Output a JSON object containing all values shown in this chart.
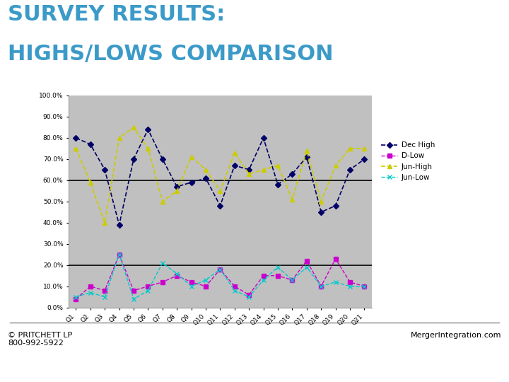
{
  "title_line1": "SURVEY RESULTS:",
  "title_line2": "HIGHS/LOWS COMPARISON",
  "title_color": "#3B9AC8",
  "title_fontsize": 22,
  "categories": [
    "Q1",
    "Q2",
    "Q3",
    "Q4",
    "Q5",
    "Q6",
    "Q7",
    "Q8",
    "Q9",
    "Q10",
    "Q11",
    "Q12",
    "Q13",
    "Q14",
    "Q15",
    "Q16",
    "Q17",
    "Q18",
    "Q19",
    "Q20",
    "Q21"
  ],
  "dec_high": [
    80,
    77,
    65,
    39,
    70,
    84,
    70,
    57,
    59,
    61,
    48,
    67,
    65,
    80,
    58,
    63,
    71,
    45,
    48,
    65,
    70
  ],
  "d_low": [
    4,
    10,
    8,
    25,
    8,
    10,
    12,
    15,
    12,
    10,
    18,
    10,
    6,
    15,
    15,
    13,
    22,
    10,
    23,
    12,
    10
  ],
  "jun_high": [
    75,
    59,
    40,
    80,
    85,
    75,
    50,
    55,
    71,
    65,
    55,
    73,
    63,
    65,
    67,
    51,
    74,
    50,
    67,
    75,
    75
  ],
  "jun_low": [
    5,
    7,
    5,
    25,
    4,
    8,
    21,
    16,
    10,
    13,
    18,
    8,
    5,
    13,
    19,
    13,
    19,
    10,
    12,
    10,
    10
  ],
  "dec_high_color": "#000066",
  "d_low_color": "#CC00CC",
  "jun_high_color": "#CCCC00",
  "jun_low_color": "#00CCCC",
  "plot_bg": "#C0C0C0",
  "ylim": [
    0,
    100
  ],
  "yticks": [
    0,
    10,
    20,
    30,
    40,
    50,
    60,
    70,
    80,
    90,
    100
  ],
  "hlines": [
    20,
    60
  ],
  "hline_color": "#000000",
  "legend_labels": [
    "Dec High",
    "D-Low",
    "Jun-High",
    "Jun-Low"
  ],
  "footer_left": "© PRITCHETT LP\n800-992-5922",
  "footer_right": "MergerIntegration.com",
  "footer_fontsize": 8,
  "sep_line_color": "#888888"
}
